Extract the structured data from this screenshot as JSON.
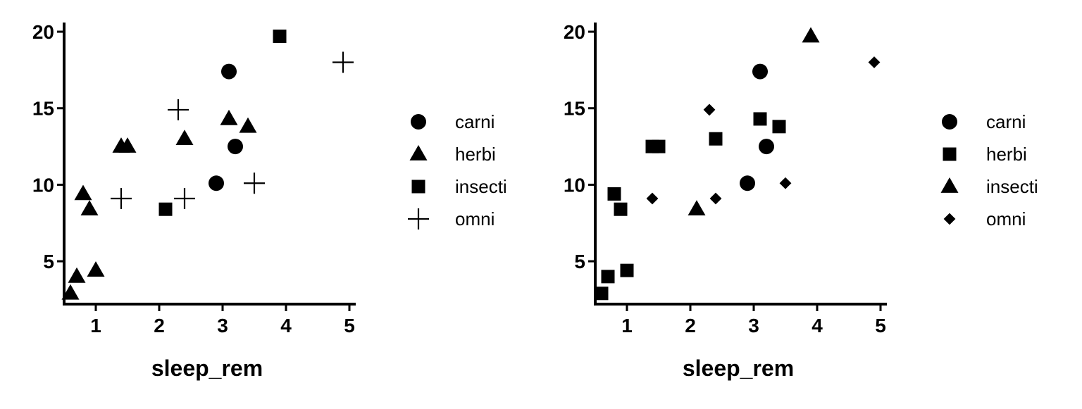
{
  "chart_data": [
    {
      "type": "scatter",
      "title": "",
      "xlabel": "sleep_rem",
      "ylabel": "",
      "xlim": [
        0.5,
        5.1
      ],
      "ylim": [
        2.2,
        20.6
      ],
      "xticks": [
        1,
        2,
        3,
        4,
        5
      ],
      "yticks": [
        5,
        10,
        15,
        20
      ],
      "grid": false,
      "legend_position": "right",
      "legend": [
        {
          "label": "carni",
          "shape": "circle"
        },
        {
          "label": "herbi",
          "shape": "triangle"
        },
        {
          "label": "insecti",
          "shape": "square"
        },
        {
          "label": "omni",
          "shape": "plus"
        }
      ],
      "series": [
        {
          "name": "carni",
          "shape": "circle",
          "points": [
            [
              2.9,
              10.1
            ],
            [
              3.1,
              17.4
            ],
            [
              3.2,
              12.5
            ]
          ]
        },
        {
          "name": "herbi",
          "shape": "triangle",
          "points": [
            [
              0.6,
              2.9
            ],
            [
              0.7,
              4.0
            ],
            [
              0.8,
              9.4
            ],
            [
              0.9,
              8.4
            ],
            [
              1.0,
              4.4
            ],
            [
              1.4,
              12.5
            ],
            [
              1.5,
              12.5
            ],
            [
              2.4,
              13.0
            ],
            [
              3.1,
              14.3
            ],
            [
              3.4,
              13.8
            ]
          ]
        },
        {
          "name": "insecti",
          "shape": "square",
          "points": [
            [
              2.1,
              8.4
            ],
            [
              3.9,
              19.7
            ]
          ]
        },
        {
          "name": "omni",
          "shape": "plus",
          "points": [
            [
              1.4,
              9.1
            ],
            [
              2.3,
              14.9
            ],
            [
              2.4,
              9.1
            ],
            [
              3.5,
              10.1
            ],
            [
              4.9,
              18.0
            ]
          ]
        }
      ]
    },
    {
      "type": "scatter",
      "title": "",
      "xlabel": "sleep_rem",
      "ylabel": "",
      "xlim": [
        0.5,
        5.1
      ],
      "ylim": [
        2.2,
        20.6
      ],
      "xticks": [
        1,
        2,
        3,
        4,
        5
      ],
      "yticks": [
        5,
        10,
        15,
        20
      ],
      "grid": false,
      "legend_position": "right",
      "legend": [
        {
          "label": "carni",
          "shape": "circle"
        },
        {
          "label": "herbi",
          "shape": "square"
        },
        {
          "label": "insecti",
          "shape": "triangle"
        },
        {
          "label": "omni",
          "shape": "diamond"
        }
      ],
      "series": [
        {
          "name": "carni",
          "shape": "circle",
          "points": [
            [
              2.9,
              10.1
            ],
            [
              3.1,
              17.4
            ],
            [
              3.2,
              12.5
            ]
          ]
        },
        {
          "name": "herbi",
          "shape": "square",
          "points": [
            [
              0.6,
              2.9
            ],
            [
              0.7,
              4.0
            ],
            [
              0.8,
              9.4
            ],
            [
              0.9,
              8.4
            ],
            [
              1.0,
              4.4
            ],
            [
              1.4,
              12.5
            ],
            [
              1.5,
              12.5
            ],
            [
              2.4,
              13.0
            ],
            [
              3.1,
              14.3
            ],
            [
              3.4,
              13.8
            ]
          ]
        },
        {
          "name": "insecti",
          "shape": "triangle",
          "points": [
            [
              2.1,
              8.4
            ],
            [
              3.9,
              19.7
            ]
          ]
        },
        {
          "name": "omni",
          "shape": "diamond",
          "points": [
            [
              1.4,
              9.1
            ],
            [
              2.3,
              14.9
            ],
            [
              2.4,
              9.1
            ],
            [
              3.5,
              10.1
            ],
            [
              4.9,
              18.0
            ]
          ]
        }
      ]
    }
  ]
}
